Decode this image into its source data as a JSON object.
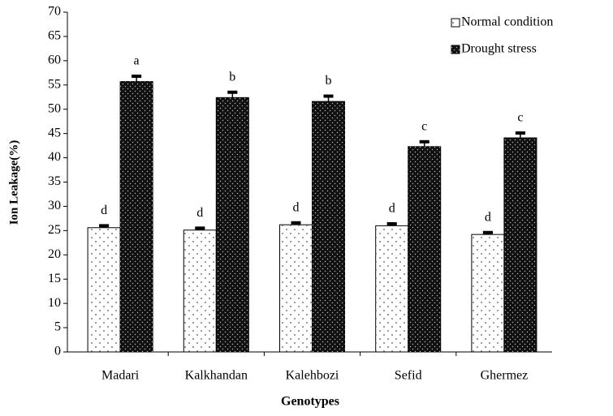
{
  "chart_data": {
    "type": "bar",
    "x_label": "Genotypes",
    "y_label": "Ion Leakage(%)",
    "categories": [
      "Madari",
      "Kalkhandan",
      "Kalehbozi",
      "Sefid",
      "Ghermez"
    ],
    "series": [
      {
        "name": "Normal condition",
        "color": "#ffffff",
        "values": [
          25.6,
          25.1,
          26.2,
          26.0,
          24.2
        ],
        "errors": [
          0.4,
          0.4,
          0.4,
          0.4,
          0.4
        ],
        "letters": [
          "d",
          "d",
          "d",
          "d",
          "d"
        ]
      },
      {
        "name": "Drought stress",
        "color": "#111111",
        "values": [
          55.7,
          52.4,
          51.6,
          42.3,
          44.1
        ],
        "errors": [
          1.1,
          1.1,
          1.1,
          1.0,
          1.0
        ],
        "letters": [
          "a",
          "b",
          "b",
          "c",
          "c"
        ]
      }
    ],
    "ylim": [
      0,
      70
    ],
    "yticks": [
      0,
      5,
      10,
      15,
      20,
      25,
      30,
      35,
      40,
      45,
      50,
      55,
      60,
      65,
      70
    ],
    "legend": "top-right"
  }
}
